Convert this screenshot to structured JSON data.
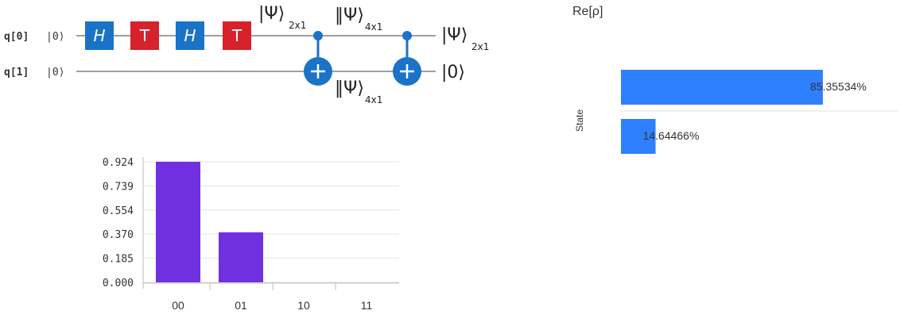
{
  "circuit": {
    "wires": [
      {
        "label": "q[0]",
        "init": "|0⟩"
      },
      {
        "label": "q[1]",
        "init": "|0⟩"
      }
    ],
    "gates": [
      {
        "label": "H",
        "color": "#1a73c6",
        "italic": true
      },
      {
        "label": "T",
        "color": "#d7212b",
        "italic": false
      },
      {
        "label": "H",
        "color": "#1a73c6",
        "italic": true
      },
      {
        "label": "T",
        "color": "#d7212b",
        "italic": false
      }
    ],
    "state_labels": {
      "psi_2x1": {
        "sym": "|Ψ⟩",
        "sub": "2x1"
      },
      "psi_4x1_top": {
        "sym": "‖Ψ⟩",
        "sub": "4x1"
      },
      "psi_4x1_bottom": {
        "sym": "‖Ψ⟩",
        "sub": "4x1"
      },
      "out_q0": {
        "sym": "|Ψ⟩",
        "sub": "2x1"
      },
      "out_q1": {
        "sym": "|0⟩"
      }
    },
    "cnot_color": "#1a73c6",
    "wire_color": "#9e9e9e"
  },
  "chart_data": [
    {
      "type": "bar",
      "categories": [
        "00",
        "01",
        "10",
        "11"
      ],
      "values": [
        0.924,
        0.383,
        0,
        0
      ],
      "yticks": [
        "0.924",
        "0.739",
        "0.554",
        "0.370",
        "0.185",
        "0.000"
      ],
      "ylim": [
        0,
        0.924
      ],
      "grid": true,
      "bar_color": "#7030e0"
    },
    {
      "type": "bar",
      "orientation": "horizontal",
      "title": "Re[ρ]",
      "ylabel": "State",
      "values": [
        85.35534,
        14.64466
      ],
      "value_labels": [
        "85.35534%",
        "14.64466%"
      ],
      "xlim": [
        0,
        100
      ],
      "bar_color": "#2f80ff"
    }
  ]
}
